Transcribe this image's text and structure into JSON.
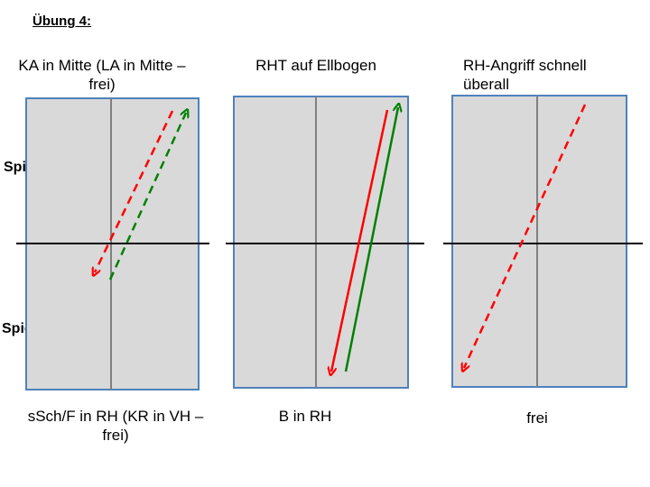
{
  "heading": "Übung 4:",
  "players": {
    "a": "Spieler A",
    "b": "Spieler B"
  },
  "panels": [
    {
      "top_label": "KA in Mitte (LA in Mitte – frei)",
      "bottom_label": "sSch/F in RH (KR in VH – frei)"
    },
    {
      "top_label": "RHT auf Ellbogen",
      "bottom_label": "B in RH"
    },
    {
      "top_label": "RH-Angriff schnell überall",
      "bottom_label": "frei"
    }
  ],
  "colors": {
    "table_fill": "#d9d9d9",
    "table_border": "#4f81bd",
    "net": "#000000",
    "center_line": "#808080",
    "ball_red": "#ff0000",
    "ball_green": "#008000"
  }
}
